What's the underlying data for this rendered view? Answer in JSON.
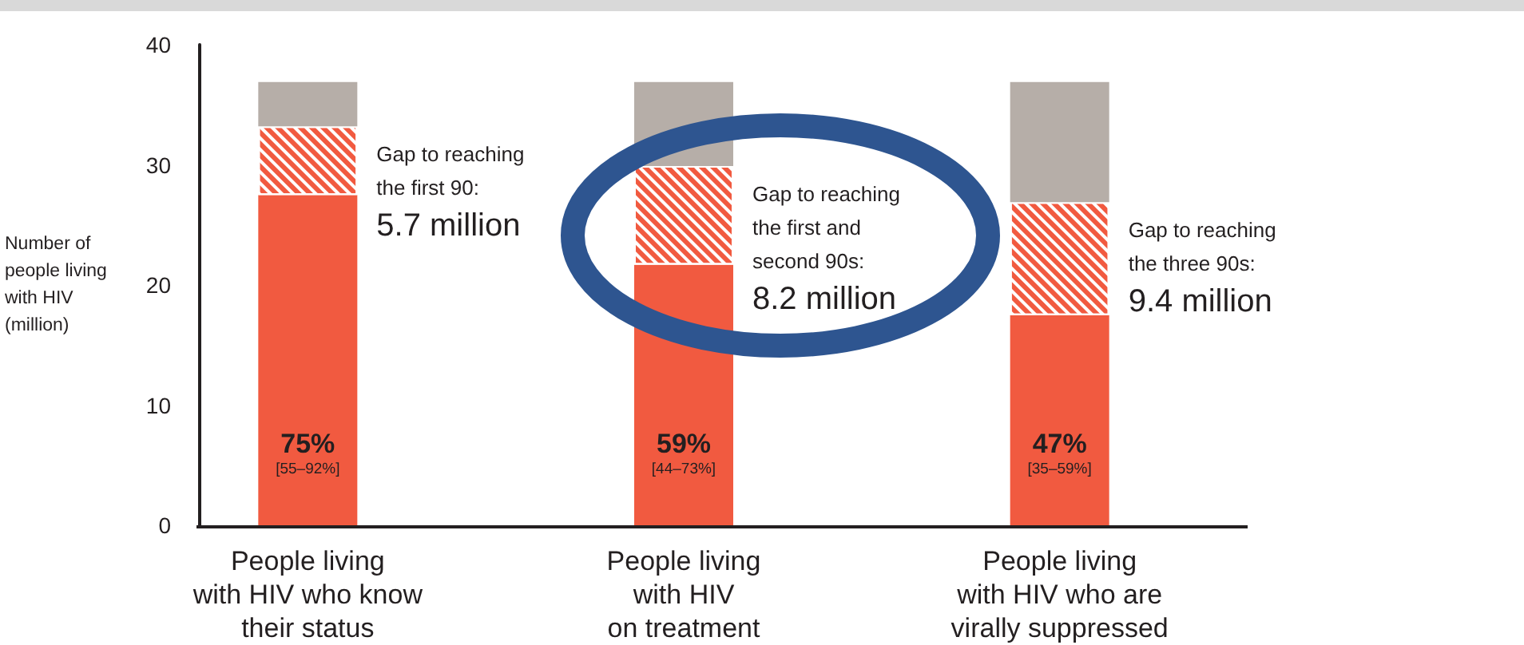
{
  "chart_data": {
    "type": "bar",
    "stacked": true,
    "categories": [
      "People living\nwith HIV who know\ntheir status",
      "People living\nwith HIV\non treatment",
      "People living\nwith HIV who are\nvirally suppressed"
    ],
    "ylabel": "Number of\npeople living\nwith HIV\n(million)",
    "ylim": [
      0,
      40
    ],
    "yticks": [
      0,
      10,
      20,
      30,
      40
    ],
    "series": [
      {
        "color": "#f15a40",
        "values": [
          27.5,
          21.7,
          17.5
        ]
      },
      {
        "color": "#f15a40",
        "values": [
          5.7,
          8.2,
          9.4
        ]
      },
      {
        "color": "#b6aea8",
        "values": [
          3.7,
          7.0,
          10.0
        ]
      }
    ],
    "annotations": [
      {
        "text": "Gap to reaching\nthe first 90:\n5.7 million",
        "x": "People living\nwith HIV who know\ntheir status",
        "y": 33.2
      },
      {
        "text": "Gap to reaching\nthe first and\nsecond 90s:\n8.2 million",
        "x": "People living\nwith HIV\non treatment",
        "y": 29.9
      },
      {
        "text": "Gap to reaching\nthe three 90s:\n9.4 million",
        "x": "People living\nwith HIV who are\nvirally suppressed",
        "y": 26.9
      },
      "75%\n[55–92%]",
      "59%\n[44–73%]",
      "47%\n[35–59%]"
    ]
  }
}
